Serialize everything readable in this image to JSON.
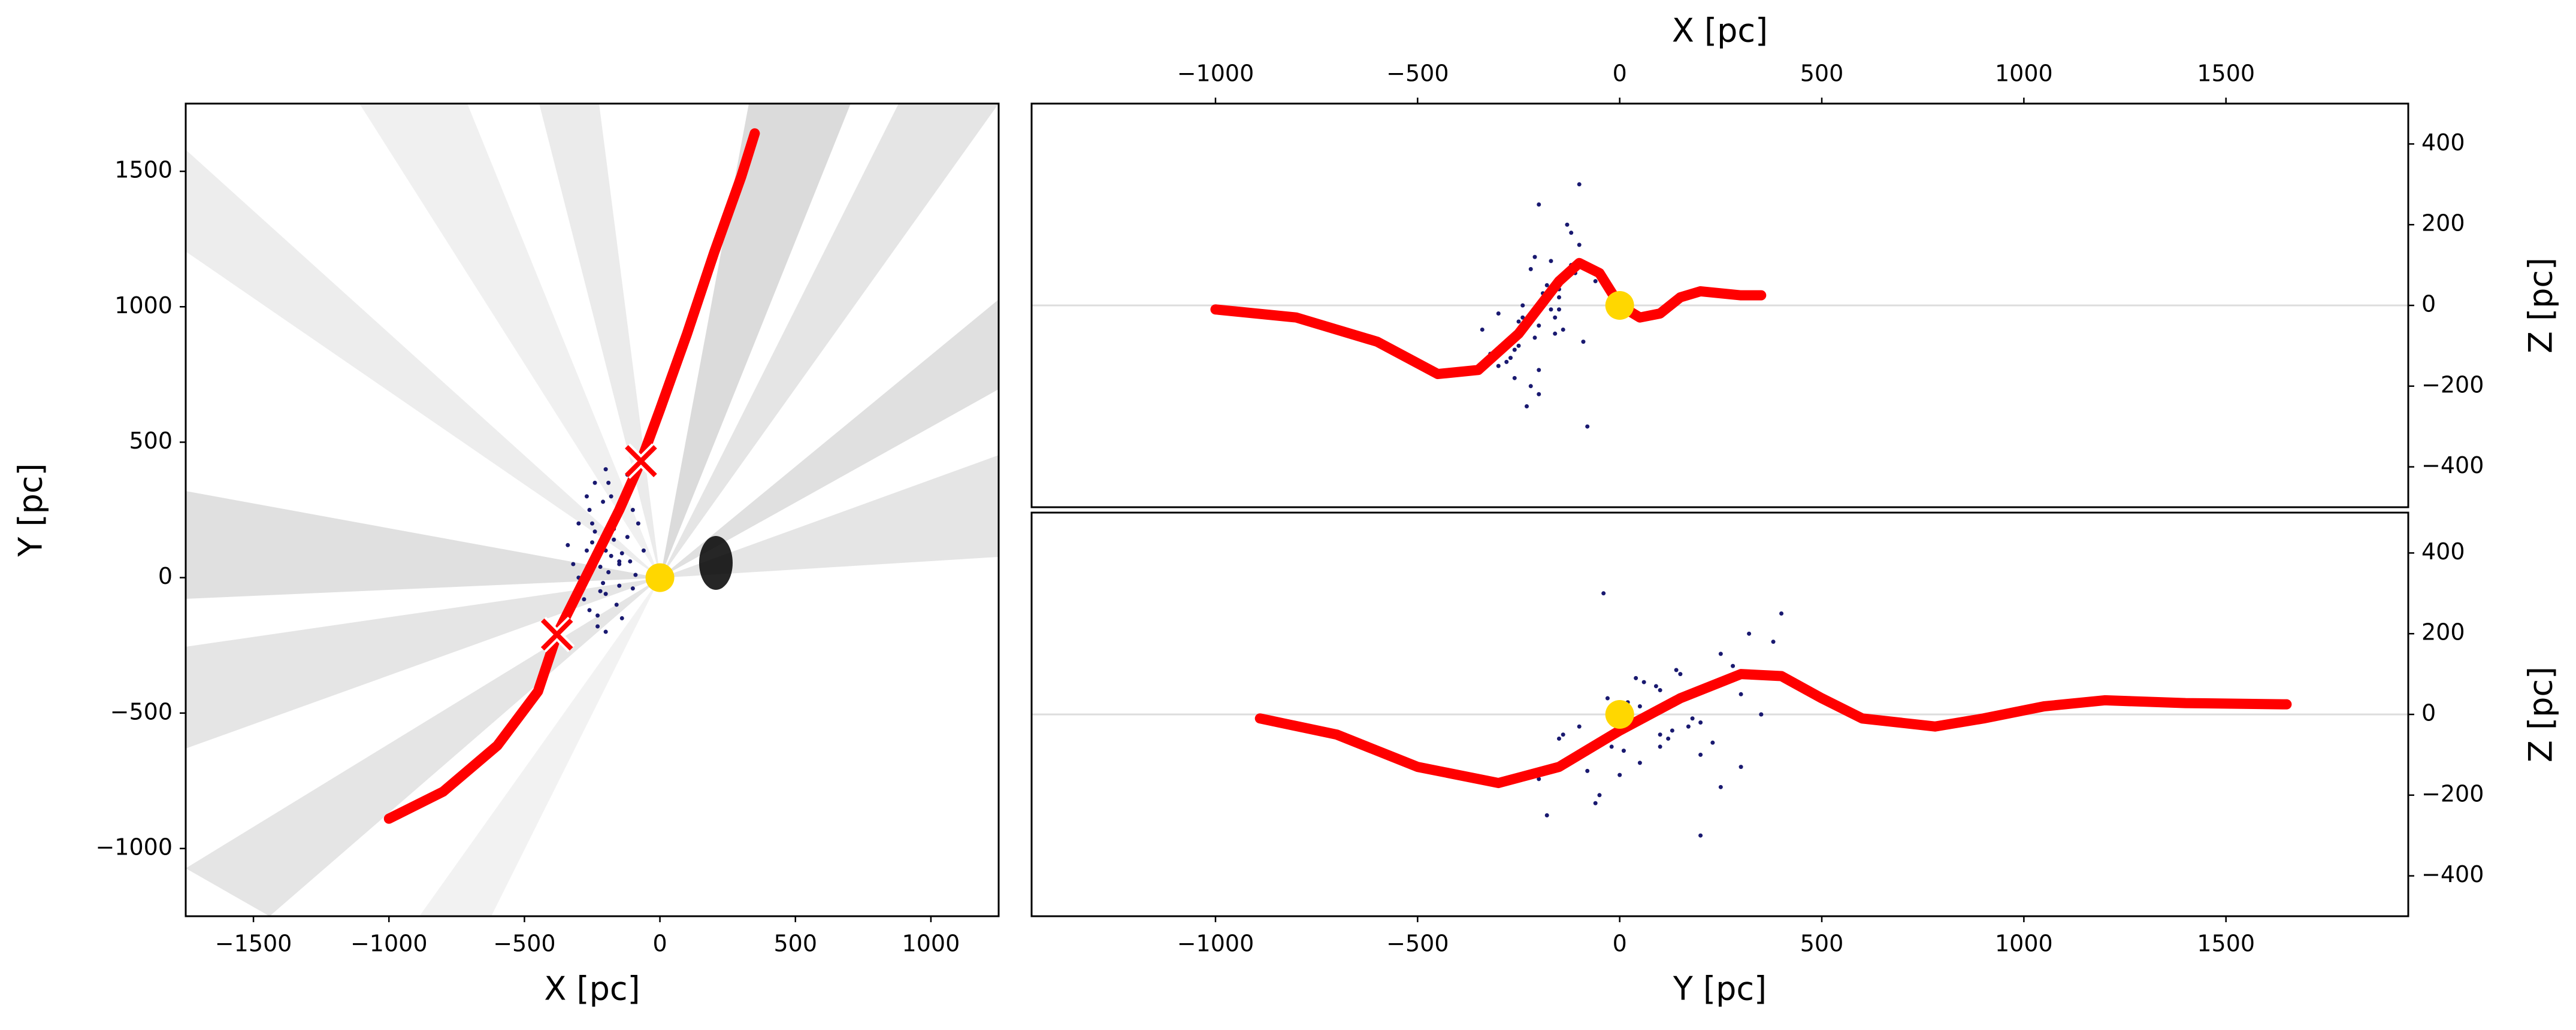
{
  "chart_data": [
    {
      "type": "scatter",
      "xlabel": "X [pc]",
      "ylabel": "Y [pc]",
      "xaxis_position": "bottom",
      "yaxis_position": "left",
      "xlim": [
        -1750,
        1250
      ],
      "ylim": [
        -1250,
        1750
      ],
      "xticks": [
        {
          "value": -1500,
          "label": "−1500"
        },
        {
          "value": -1000,
          "label": "−1000"
        },
        {
          "value": -500,
          "label": "−500"
        },
        0,
        500,
        1000
      ],
      "yticks": [
        {
          "value": -1000,
          "label": "−1000"
        },
        {
          "value": -500,
          "label": "−500"
        },
        0,
        500,
        1000,
        1500
      ],
      "series": [
        {
          "mode": "markers",
          "marker": "dot",
          "color": "#191970",
          "x": [
            -200,
            -150,
            -250,
            -300,
            -180,
            -120,
            -220,
            -270,
            -100,
            -160,
            -240,
            -320,
            -60,
            -200,
            -140,
            -260,
            -190,
            -230,
            -110,
            -170,
            -280,
            -210,
            -130,
            -250,
            -90,
            -300,
            -150,
            -200,
            -340,
            -180,
            -80,
            -220,
            -260,
            -120,
            -160,
            -240,
            -200,
            -140,
            -100,
            -190,
            -270,
            -230,
            -170,
            -210,
            -150
          ],
          "values": [
            100,
            50,
            200,
            0,
            300,
            150,
            -50,
            100,
            250,
            -100,
            350,
            50,
            100,
            400,
            -150,
            250,
            20,
            -180,
            60,
            180,
            -80,
            280,
            320,
            130,
            10,
            200,
            -30,
            -200,
            120,
            80,
            200,
            40,
            -120,
            380,
            230,
            170,
            -60,
            90,
            -40,
            350,
            300,
            -140,
            140,
            -20,
            60
          ]
        },
        {
          "mode": "lines",
          "color": "#ff0000",
          "x": [
            -1000,
            -800,
            -600,
            -450,
            -380,
            -250,
            -150,
            -70,
            0,
            100,
            200,
            300,
            350
          ],
          "values": [
            -890,
            -790,
            -620,
            -420,
            -210,
            50,
            250,
            430,
            620,
            900,
            1200,
            1480,
            1640
          ]
        },
        {
          "mode": "markers",
          "marker": "circle",
          "color": "#ffd700",
          "x": [
            0
          ],
          "values": [
            0
          ]
        },
        {
          "mode": "markers",
          "marker": "x",
          "color": "#ff0000",
          "x": [
            -380,
            -70
          ],
          "values": [
            -210,
            430
          ]
        }
      ]
    },
    {
      "type": "scatter",
      "xlabel": "X [pc]",
      "ylabel": "Z [pc]",
      "xaxis_position": "top",
      "yaxis_position": "right",
      "xlim": [
        -1455,
        1951
      ],
      "ylim": [
        -500,
        500
      ],
      "reference_line": 0,
      "xticks": [
        {
          "value": -1000,
          "label": "−1000"
        },
        {
          "value": -500,
          "label": "−500"
        },
        0,
        500,
        1000,
        1500
      ],
      "yticks": [
        {
          "value": -400,
          "label": "−400"
        },
        {
          "value": -200,
          "label": "−200"
        },
        0,
        200,
        400
      ],
      "series": [
        {
          "mode": "markers",
          "marker": "dot",
          "color": "#191970",
          "x": [
            -200,
            -150,
            -250,
            -300,
            -180,
            -120,
            -220,
            -270,
            -100,
            -160,
            -240,
            -320,
            -60,
            -200,
            -140,
            -260,
            -190,
            -230,
            -110,
            -170,
            -280,
            -210,
            -130,
            -250,
            -90,
            -300,
            -150,
            -200,
            -340,
            -180,
            -80,
            -220,
            -260,
            -120,
            -160,
            -240,
            -200,
            -140,
            -100,
            -190,
            -270,
            -230,
            -170,
            -210,
            -150
          ],
          "values": [
            -50,
            20,
            -100,
            -150,
            50,
            100,
            -200,
            -80,
            150,
            -30,
            0,
            -120,
            60,
            250,
            -60,
            -180,
            30,
            -250,
            80,
            -10,
            -140,
            120,
            200,
            -40,
            -90,
            -20,
            40,
            -160,
            -60,
            10,
            -300,
            90,
            -110,
            180,
            -70,
            -30,
            -220,
            70,
            300,
            0,
            -130,
            -50,
            110,
            -80,
            -10
          ]
        },
        {
          "mode": "lines",
          "color": "#ff0000",
          "x": [
            -1000,
            -800,
            -600,
            -450,
            -350,
            -250,
            -150,
            -100,
            -50,
            0,
            50,
            100,
            150,
            200,
            300,
            350
          ],
          "values": [
            -10,
            -30,
            -90,
            -170,
            -160,
            -70,
            60,
            105,
            80,
            0,
            -30,
            -20,
            20,
            35,
            25,
            25
          ]
        },
        {
          "mode": "markers",
          "marker": "circle",
          "color": "#ffd700",
          "x": [
            0
          ],
          "values": [
            0
          ]
        }
      ]
    },
    {
      "type": "scatter",
      "xlabel": "Y [pc]",
      "ylabel": "Z [pc]",
      "xaxis_position": "bottom",
      "yaxis_position": "right",
      "xlim": [
        -1455,
        1951
      ],
      "ylim": [
        -500,
        500
      ],
      "reference_line": 0,
      "xticks": [
        {
          "value": -1000,
          "label": "−1000"
        },
        {
          "value": -500,
          "label": "−500"
        },
        0,
        500,
        1000,
        1500
      ],
      "yticks": [
        {
          "value": -400,
          "label": "−400"
        },
        {
          "value": -200,
          "label": "−200"
        },
        0,
        200,
        400
      ],
      "series": [
        {
          "mode": "markers",
          "marker": "dot",
          "color": "#191970",
          "x": [
            100,
            50,
            200,
            0,
            300,
            150,
            -50,
            100,
            250,
            -100,
            350,
            50,
            100,
            400,
            -150,
            250,
            20,
            -180,
            60,
            180,
            -80,
            280,
            320,
            130,
            10,
            200,
            -30,
            -200,
            120,
            80,
            200,
            40,
            -120,
            380,
            230,
            170,
            -60,
            90,
            -40,
            350,
            300,
            -140,
            140,
            -20,
            60
          ],
          "values": [
            -50,
            20,
            -100,
            -150,
            50,
            100,
            -200,
            -80,
            150,
            -30,
            0,
            -120,
            60,
            250,
            -60,
            -180,
            30,
            -250,
            80,
            -10,
            -140,
            120,
            200,
            -40,
            -90,
            -20,
            40,
            -160,
            -60,
            10,
            -300,
            90,
            -110,
            180,
            -70,
            -30,
            -220,
            70,
            300,
            0,
            -130,
            -50,
            110,
            -80,
            -10
          ]
        },
        {
          "mode": "lines",
          "color": "#ff0000",
          "x": [
            -890,
            -700,
            -500,
            -300,
            -150,
            0,
            150,
            300,
            400,
            500,
            600,
            780,
            900,
            1050,
            1200,
            1400,
            1650
          ],
          "values": [
            -10,
            -50,
            -130,
            -170,
            -130,
            -40,
            40,
            100,
            95,
            40,
            -10,
            -30,
            -10,
            20,
            35,
            28,
            25
          ]
        },
        {
          "mode": "markers",
          "marker": "circle",
          "color": "#ffd700",
          "x": [
            0
          ],
          "values": [
            0
          ]
        }
      ]
    }
  ]
}
